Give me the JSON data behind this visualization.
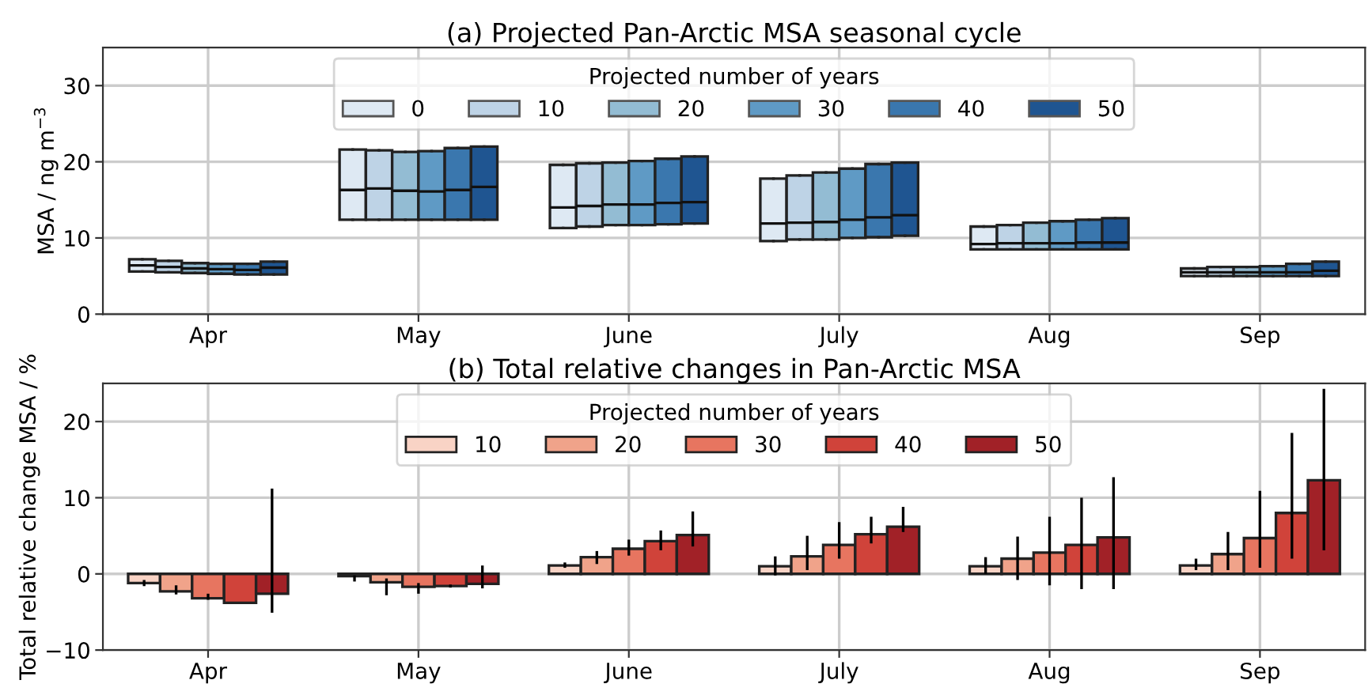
{
  "chart_data": [
    {
      "type": "box",
      "title": "(a) Projected Pan-Arctic MSA seasonal cycle",
      "ylabel": "MSA / ng m$^{−3}$",
      "legend_title": "Projected number of years",
      "categories": [
        "Apr",
        "May",
        "June",
        "July",
        "Aug",
        "Sep"
      ],
      "ylim": [
        0,
        35
      ],
      "yticks": [
        0,
        10,
        20,
        30
      ],
      "grid": true,
      "legend": "top",
      "series": [
        {
          "name": "0",
          "color": "#dee9f3",
          "boxes": [
            {
              "low": 5.6,
              "q1": 5.6,
              "median": 6.4,
              "q3": 7.2,
              "high": 7.2
            },
            {
              "low": 12.4,
              "q1": 12.4,
              "median": 16.3,
              "q3": 21.6,
              "high": 21.6
            },
            {
              "low": 11.3,
              "q1": 11.3,
              "median": 14.0,
              "q3": 19.6,
              "high": 19.6
            },
            {
              "low": 9.6,
              "q1": 9.6,
              "median": 11.9,
              "q3": 17.8,
              "high": 17.8
            },
            {
              "low": 8.5,
              "q1": 8.5,
              "median": 9.2,
              "q3": 11.5,
              "high": 11.5
            },
            {
              "low": 5.0,
              "q1": 5.0,
              "median": 5.5,
              "q3": 6.0,
              "high": 6.0
            }
          ]
        },
        {
          "name": "10",
          "color": "#bed3e6",
          "boxes": [
            {
              "low": 5.5,
              "q1": 5.5,
              "median": 6.2,
              "q3": 7.0,
              "high": 7.0
            },
            {
              "low": 12.4,
              "q1": 12.4,
              "median": 16.5,
              "q3": 21.5,
              "high": 21.5
            },
            {
              "low": 11.5,
              "q1": 11.5,
              "median": 14.2,
              "q3": 19.8,
              "high": 19.8
            },
            {
              "low": 9.8,
              "q1": 9.8,
              "median": 12.0,
              "q3": 18.2,
              "high": 18.2
            },
            {
              "low": 8.5,
              "q1": 8.5,
              "median": 9.3,
              "q3": 11.7,
              "high": 11.7
            },
            {
              "low": 5.0,
              "q1": 5.0,
              "median": 5.5,
              "q3": 6.2,
              "high": 6.2
            }
          ]
        },
        {
          "name": "20",
          "color": "#93bcd3",
          "boxes": [
            {
              "low": 5.4,
              "q1": 5.4,
              "median": 6.0,
              "q3": 6.7,
              "high": 6.7
            },
            {
              "low": 12.4,
              "q1": 12.4,
              "median": 16.2,
              "q3": 21.3,
              "high": 21.3
            },
            {
              "low": 11.7,
              "q1": 11.7,
              "median": 14.4,
              "q3": 19.9,
              "high": 19.9
            },
            {
              "low": 9.8,
              "q1": 9.8,
              "median": 12.1,
              "q3": 18.6,
              "high": 18.6
            },
            {
              "low": 8.5,
              "q1": 8.5,
              "median": 9.3,
              "q3": 12.0,
              "high": 12.0
            },
            {
              "low": 5.0,
              "q1": 5.0,
              "median": 5.5,
              "q3": 6.2,
              "high": 6.2
            }
          ]
        },
        {
          "name": "30",
          "color": "#5f9ac5",
          "boxes": [
            {
              "low": 5.3,
              "q1": 5.3,
              "median": 5.9,
              "q3": 6.6,
              "high": 6.6
            },
            {
              "low": 12.4,
              "q1": 12.4,
              "median": 16.1,
              "q3": 21.4,
              "high": 21.4
            },
            {
              "low": 11.7,
              "q1": 11.7,
              "median": 14.4,
              "q3": 20.1,
              "high": 20.1
            },
            {
              "low": 10.0,
              "q1": 10.0,
              "median": 12.4,
              "q3": 19.1,
              "high": 19.1
            },
            {
              "low": 8.5,
              "q1": 8.5,
              "median": 9.3,
              "q3": 12.2,
              "high": 12.2
            },
            {
              "low": 5.0,
              "q1": 5.0,
              "median": 5.5,
              "q3": 6.3,
              "high": 6.3
            }
          ]
        },
        {
          "name": "40",
          "color": "#3a77ae",
          "boxes": [
            {
              "low": 5.2,
              "q1": 5.2,
              "median": 5.8,
              "q3": 6.6,
              "high": 6.6
            },
            {
              "low": 12.4,
              "q1": 12.4,
              "median": 16.3,
              "q3": 21.8,
              "high": 21.8
            },
            {
              "low": 11.8,
              "q1": 11.8,
              "median": 14.6,
              "q3": 20.4,
              "high": 20.4
            },
            {
              "low": 10.1,
              "q1": 10.1,
              "median": 12.7,
              "q3": 19.7,
              "high": 19.7
            },
            {
              "low": 8.5,
              "q1": 8.5,
              "median": 9.4,
              "q3": 12.4,
              "high": 12.4
            },
            {
              "low": 5.0,
              "q1": 5.0,
              "median": 5.5,
              "q3": 6.6,
              "high": 6.6
            }
          ]
        },
        {
          "name": "50",
          "color": "#1f5591",
          "boxes": [
            {
              "low": 5.2,
              "q1": 5.2,
              "median": 6.1,
              "q3": 6.9,
              "high": 6.9
            },
            {
              "low": 12.4,
              "q1": 12.4,
              "median": 16.7,
              "q3": 22.0,
              "high": 22.0
            },
            {
              "low": 11.9,
              "q1": 11.9,
              "median": 14.7,
              "q3": 20.7,
              "high": 20.7
            },
            {
              "low": 10.3,
              "q1": 10.3,
              "median": 13.0,
              "q3": 19.9,
              "high": 19.9
            },
            {
              "low": 8.5,
              "q1": 8.5,
              "median": 9.4,
              "q3": 12.6,
              "high": 12.6
            },
            {
              "low": 5.0,
              "q1": 5.0,
              "median": 5.7,
              "q3": 6.9,
              "high": 6.9
            }
          ]
        }
      ]
    },
    {
      "type": "bar",
      "title": "(b) Total relative changes in Pan-Arctic MSA",
      "ylabel": "Total relative change MSA / %",
      "legend_title": "Projected number of years",
      "categories": [
        "Apr",
        "May",
        "June",
        "July",
        "Aug",
        "Sep"
      ],
      "ylim": [
        -10,
        25
      ],
      "yticks": [
        -10,
        0,
        10,
        20
      ],
      "grid": true,
      "legend": "top",
      "series": [
        {
          "name": "10",
          "color": "#f9d3c5",
          "values": [
            -1.2,
            -0.3,
            1.1,
            1.0,
            1.0,
            1.1
          ],
          "errors": [
            [
              -1.6,
              -0.8
            ],
            [
              -1.0,
              -0.2
            ],
            [
              0.8,
              1.5
            ],
            [
              -0.2,
              2.3
            ],
            [
              0.0,
              2.2
            ],
            [
              0.5,
              2.0
            ]
          ]
        },
        {
          "name": "20",
          "color": "#f0a38a",
          "values": [
            -2.3,
            -1.1,
            2.2,
            2.3,
            2.0,
            2.6
          ],
          "errors": [
            [
              -2.7,
              -1.5
            ],
            [
              -2.8,
              -0.6
            ],
            [
              1.3,
              3.0
            ],
            [
              0.5,
              5.0
            ],
            [
              -0.8,
              4.9
            ],
            [
              0.5,
              5.5
            ]
          ]
        },
        {
          "name": "30",
          "color": "#e77560",
          "values": [
            -3.2,
            -1.7,
            3.3,
            3.8,
            2.8,
            4.7
          ],
          "errors": [
            [
              -3.4,
              -2.6
            ],
            [
              -2.6,
              -1.2
            ],
            [
              2.4,
              4.5
            ],
            [
              2.0,
              6.8
            ],
            [
              -1.5,
              7.5
            ],
            [
              0.8,
              10.9
            ]
          ]
        },
        {
          "name": "40",
          "color": "#d0433a",
          "values": [
            -3.8,
            -1.6,
            4.3,
            5.2,
            3.8,
            8.0
          ],
          "errors": [
            null,
            [
              -1.8,
              -1.4
            ],
            [
              3.1,
              5.7
            ],
            [
              4.0,
              7.5
            ],
            [
              -2.0,
              10.0
            ],
            [
              2.0,
              18.5
            ]
          ]
        },
        {
          "name": "50",
          "color": "#a12127",
          "values": [
            -2.6,
            -1.3,
            5.1,
            6.2,
            4.8,
            12.3
          ],
          "errors": [
            [
              -5.1,
              11.2
            ],
            [
              -1.9,
              1.1
            ],
            [
              3.6,
              8.2
            ],
            [
              5.5,
              8.8
            ],
            [
              -2.0,
              12.7
            ],
            [
              3.1,
              24.3
            ]
          ]
        }
      ]
    }
  ]
}
